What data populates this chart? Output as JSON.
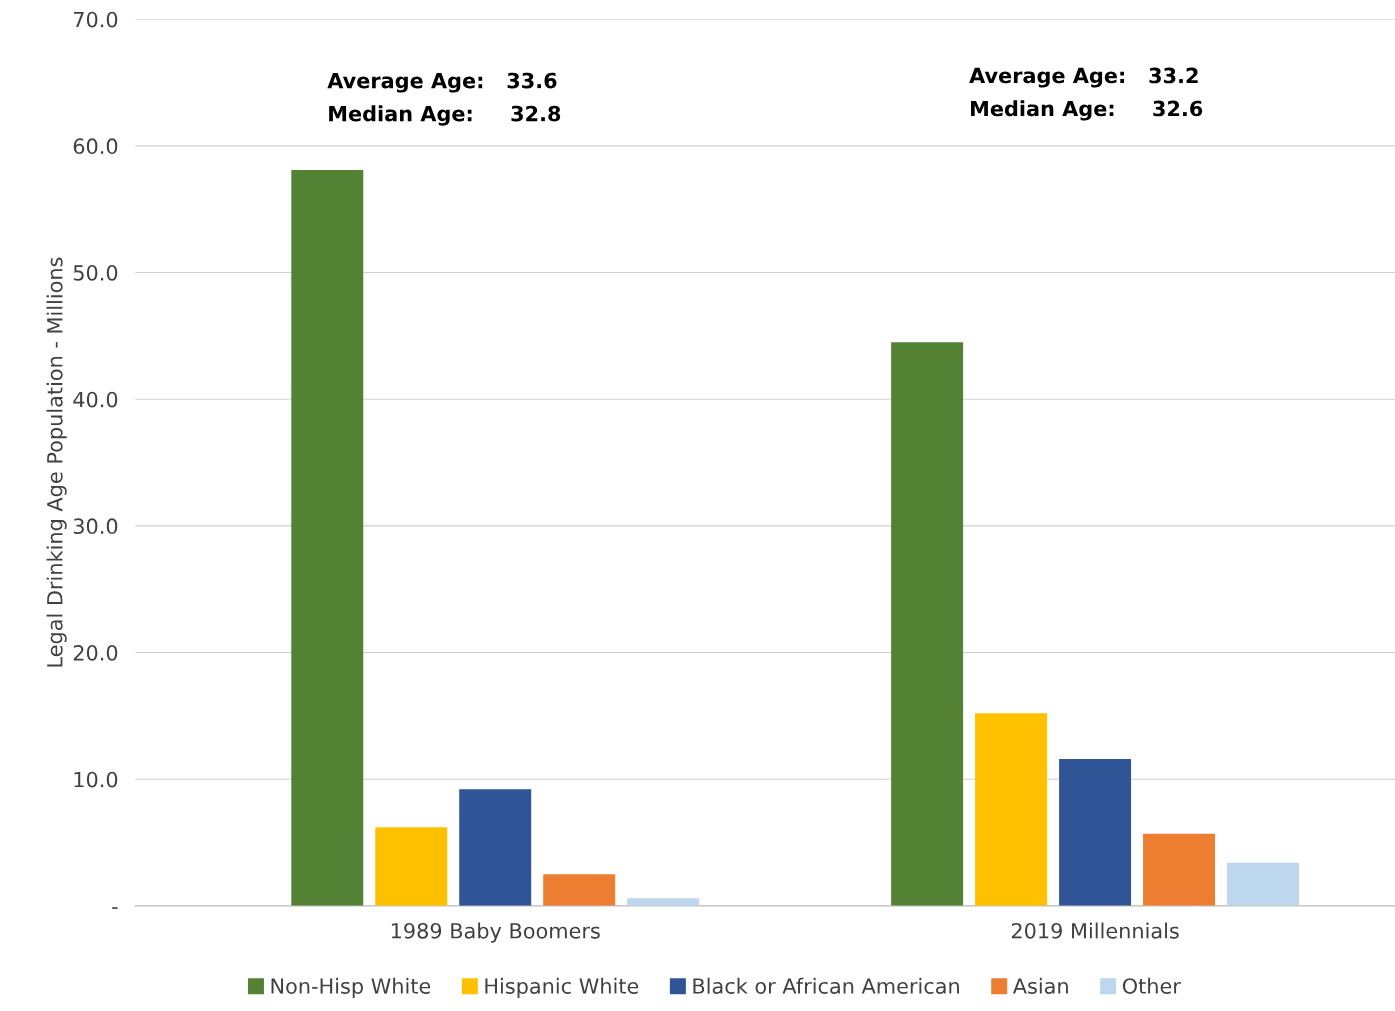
{
  "chart_data": {
    "type": "bar",
    "ylabel": "Legal Drinking Age Population - Millions",
    "categories": [
      "1989 Baby Boomers",
      "2019 Millennials"
    ],
    "series": [
      {
        "name": "Non-Hisp White",
        "color": "#548235",
        "values": [
          58.1,
          44.5
        ]
      },
      {
        "name": "Hispanic White",
        "color": "#ffc000",
        "values": [
          6.2,
          15.2
        ]
      },
      {
        "name": "Black or African American",
        "color": "#2f5597",
        "values": [
          9.2,
          11.6
        ]
      },
      {
        "name": "Asian",
        "color": "#ed7d31",
        "values": [
          2.5,
          5.7
        ]
      },
      {
        "name": "Other",
        "color": "#bdd7ee",
        "values": [
          0.6,
          3.4
        ]
      }
    ],
    "ylim": [
      0,
      70
    ],
    "yticks": [
      {
        "value": 0,
        "label": "-"
      },
      {
        "value": 10,
        "label": "10.0"
      },
      {
        "value": 20,
        "label": "20.0"
      },
      {
        "value": 30,
        "label": "30.0"
      },
      {
        "value": 40,
        "label": "40.0"
      },
      {
        "value": 50,
        "label": "50.0"
      },
      {
        "value": 60,
        "label": "60.0"
      },
      {
        "value": 70,
        "label": "70.0"
      }
    ],
    "grid": "y",
    "legend": "bottom",
    "annotations": [
      "Average Age:   33.6",
      "Median Age:     32.8",
      "Average Age:   33.2",
      "Median Age:     32.6"
    ]
  }
}
